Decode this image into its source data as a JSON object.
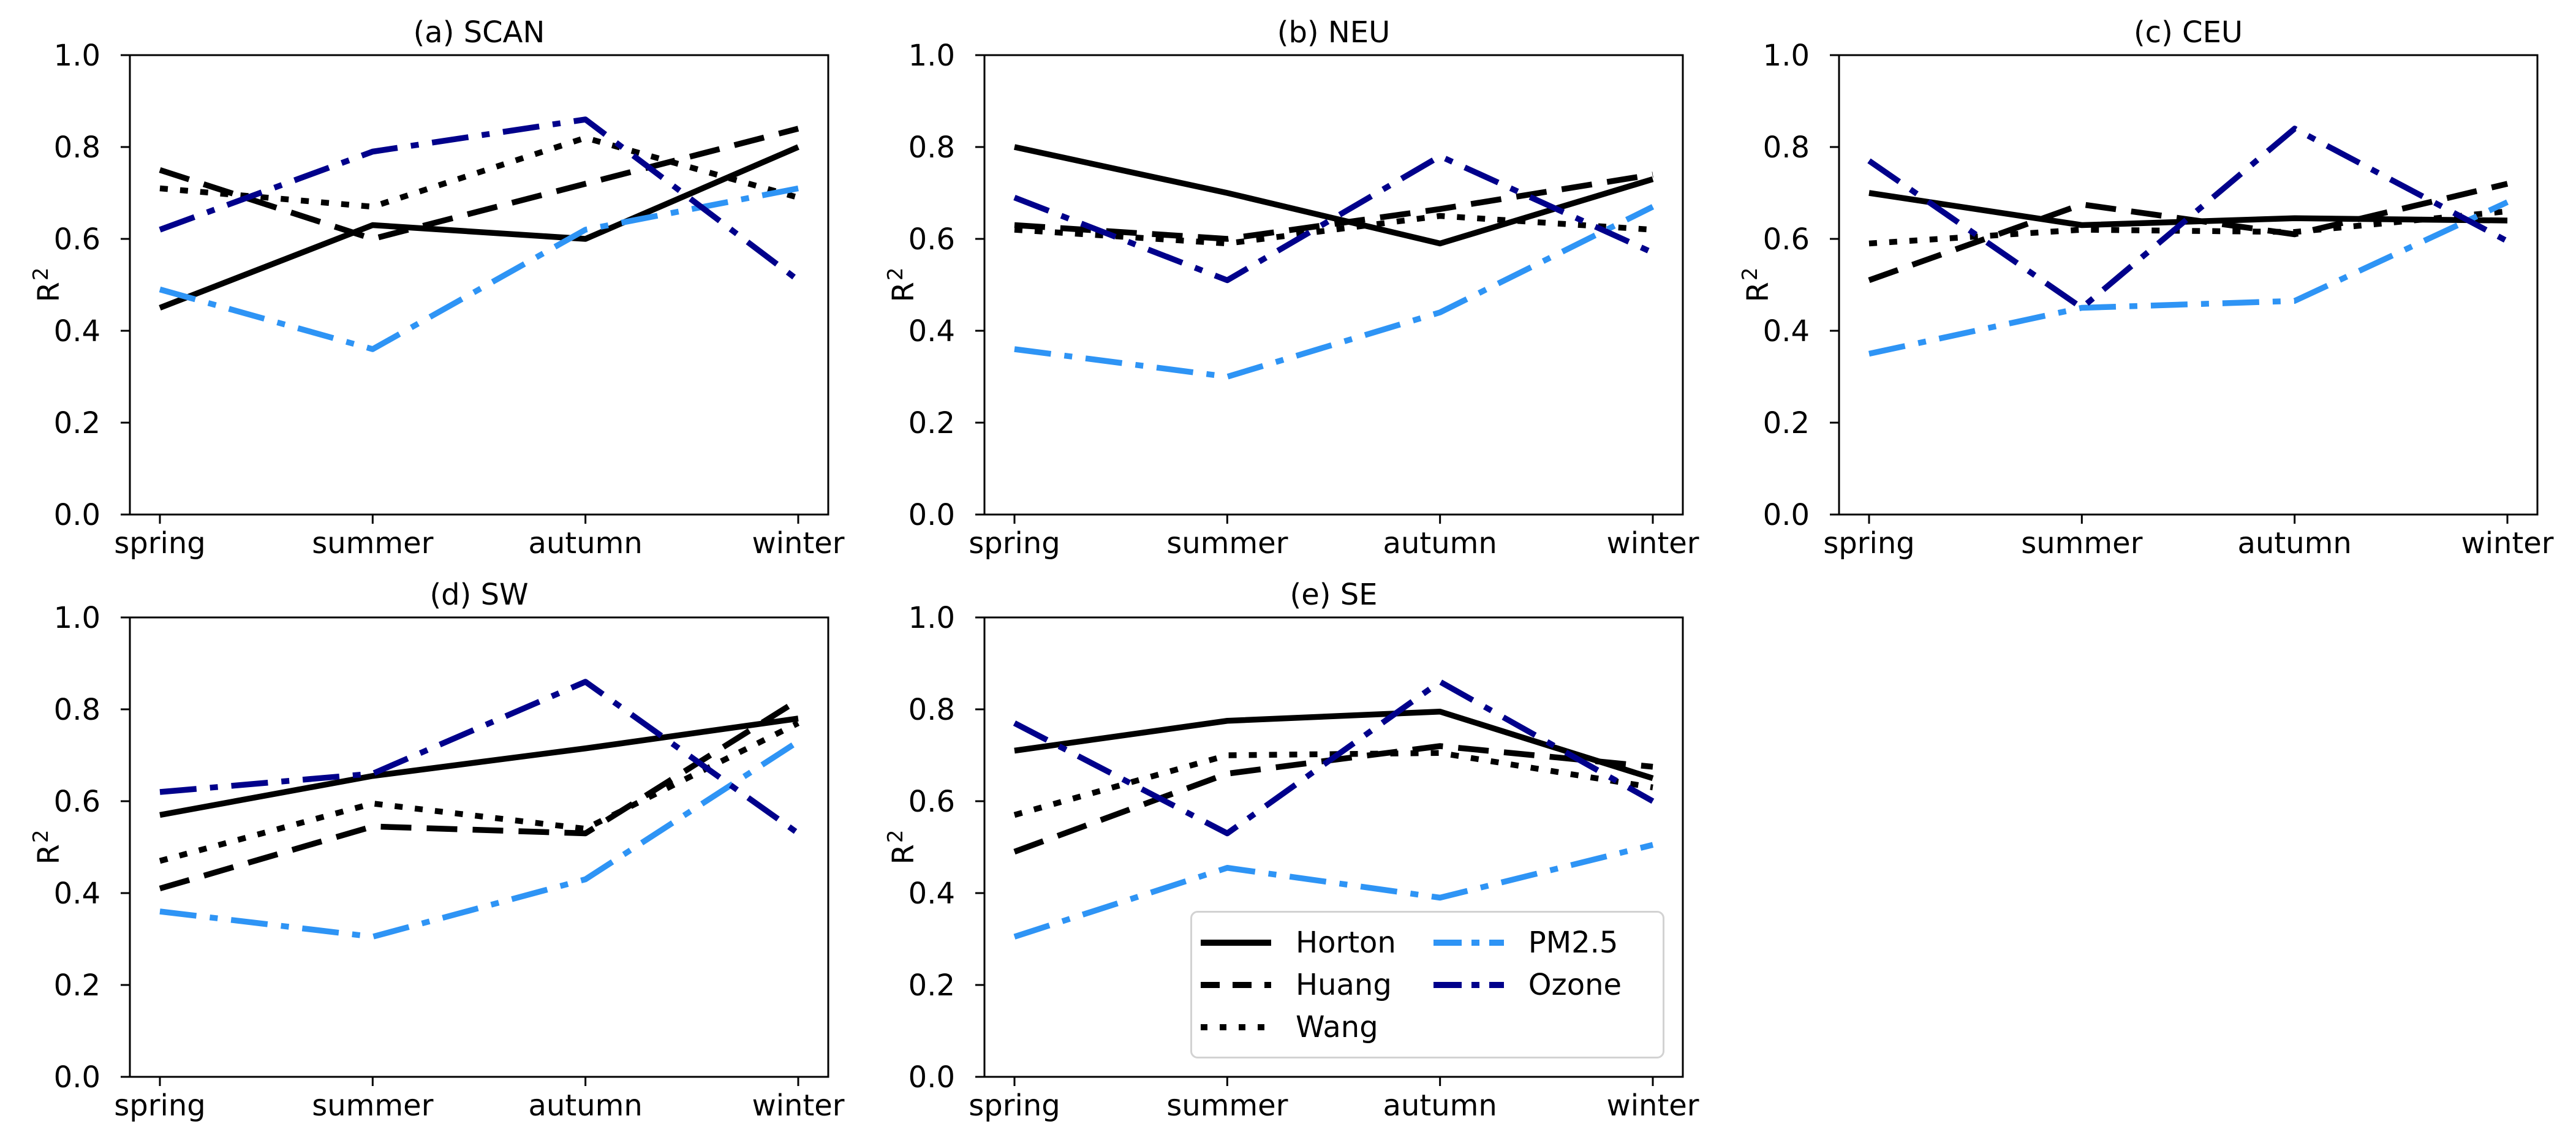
{
  "figure": {
    "background": "#ffffff",
    "n_rows": 2,
    "n_cols": 3,
    "empty_cells": [
      "row2-col3"
    ]
  },
  "ylabel_base": "R",
  "ylabel_exp": "2",
  "axis": {
    "yticks": [
      "0.0",
      "0.2",
      "0.4",
      "0.6",
      "0.8",
      "1.0"
    ],
    "ytick_values": [
      0.0,
      0.2,
      0.4,
      0.6,
      0.8,
      1.0
    ],
    "categories": [
      "spring",
      "summer",
      "autumn",
      "winter"
    ]
  },
  "series_styles": [
    {
      "name": "Horton",
      "color": "#000000",
      "linestyle": "solid"
    },
    {
      "name": "Huang",
      "color": "#000000",
      "linestyle": "dashed"
    },
    {
      "name": "Wang",
      "color": "#000000",
      "linestyle": "dotted"
    },
    {
      "name": "PM2.5",
      "color": "#2e94f5",
      "linestyle": "dashdot"
    },
    {
      "name": "Ozone",
      "color": "#00008b",
      "linestyle": "dashdot"
    }
  ],
  "legend": {
    "location": "lower right of panel (e)",
    "columns": 2,
    "items": [
      {
        "label": "Horton"
      },
      {
        "label": "Huang"
      },
      {
        "label": "Wang"
      },
      {
        "label": "PM2.5"
      },
      {
        "label": "Ozone"
      }
    ]
  },
  "chart_data": [
    {
      "type": "line",
      "panel": "a",
      "region": "SCAN",
      "title": "(a) SCAN",
      "xlabel": "",
      "ylabel": "R²",
      "ylim": [
        0.0,
        1.0
      ],
      "grid": false,
      "categories": [
        "spring",
        "summer",
        "autumn",
        "winter"
      ],
      "series": [
        {
          "name": "Horton",
          "values": [
            0.45,
            0.63,
            0.6,
            0.8
          ]
        },
        {
          "name": "Huang",
          "values": [
            0.75,
            0.6,
            0.72,
            0.84
          ]
        },
        {
          "name": "Wang",
          "values": [
            0.71,
            0.67,
            0.82,
            0.69
          ]
        },
        {
          "name": "PM2.5",
          "values": [
            0.49,
            0.36,
            0.62,
            0.71
          ]
        },
        {
          "name": "Ozone",
          "values": [
            0.62,
            0.79,
            0.86,
            0.51
          ]
        }
      ]
    },
    {
      "type": "line",
      "panel": "b",
      "region": "NEU",
      "title": "(b) NEU",
      "xlabel": "",
      "ylabel": "R²",
      "ylim": [
        0.0,
        1.0
      ],
      "grid": false,
      "categories": [
        "spring",
        "summer",
        "autumn",
        "winter"
      ],
      "series": [
        {
          "name": "Horton",
          "values": [
            0.8,
            0.7,
            0.59,
            0.73
          ]
        },
        {
          "name": "Huang",
          "values": [
            0.63,
            0.6,
            0.665,
            0.74
          ]
        },
        {
          "name": "Wang",
          "values": [
            0.62,
            0.59,
            0.65,
            0.62
          ]
        },
        {
          "name": "PM2.5",
          "values": [
            0.36,
            0.3,
            0.44,
            0.67
          ]
        },
        {
          "name": "Ozone",
          "values": [
            0.69,
            0.51,
            0.78,
            0.57
          ]
        }
      ]
    },
    {
      "type": "line",
      "panel": "c",
      "region": "CEU",
      "title": "(c) CEU",
      "xlabel": "",
      "ylabel": "R²",
      "ylim": [
        0.0,
        1.0
      ],
      "grid": false,
      "categories": [
        "spring",
        "summer",
        "autumn",
        "winter"
      ],
      "series": [
        {
          "name": "Horton",
          "values": [
            0.7,
            0.63,
            0.645,
            0.64
          ]
        },
        {
          "name": "Huang",
          "values": [
            0.51,
            0.675,
            0.61,
            0.72
          ]
        },
        {
          "name": "Wang",
          "values": [
            0.59,
            0.62,
            0.615,
            0.66
          ]
        },
        {
          "name": "PM2.5",
          "values": [
            0.35,
            0.45,
            0.465,
            0.68
          ]
        },
        {
          "name": "Ozone",
          "values": [
            0.77,
            0.45,
            0.84,
            0.595
          ]
        }
      ]
    },
    {
      "type": "line",
      "panel": "d",
      "region": "SW",
      "title": "(d) SW",
      "xlabel": "",
      "ylabel": "R²",
      "ylim": [
        0.0,
        1.0
      ],
      "grid": false,
      "categories": [
        "spring",
        "summer",
        "autumn",
        "winter"
      ],
      "series": [
        {
          "name": "Horton",
          "values": [
            0.57,
            0.655,
            0.715,
            0.78
          ]
        },
        {
          "name": "Huang",
          "values": [
            0.41,
            0.545,
            0.53,
            0.82
          ]
        },
        {
          "name": "Wang",
          "values": [
            0.47,
            0.595,
            0.54,
            0.77
          ]
        },
        {
          "name": "PM2.5",
          "values": [
            0.36,
            0.305,
            0.43,
            0.73
          ]
        },
        {
          "name": "Ozone",
          "values": [
            0.62,
            0.66,
            0.86,
            0.53
          ]
        }
      ]
    },
    {
      "type": "line",
      "panel": "e",
      "region": "SE",
      "title": "(e) SE",
      "xlabel": "",
      "ylabel": "R²",
      "ylim": [
        0.0,
        1.0
      ],
      "grid": false,
      "categories": [
        "spring",
        "summer",
        "autumn",
        "winter"
      ],
      "series": [
        {
          "name": "Horton",
          "values": [
            0.71,
            0.775,
            0.795,
            0.65
          ]
        },
        {
          "name": "Huang",
          "values": [
            0.49,
            0.66,
            0.72,
            0.675
          ]
        },
        {
          "name": "Wang",
          "values": [
            0.57,
            0.7,
            0.705,
            0.63
          ]
        },
        {
          "name": "PM2.5",
          "values": [
            0.305,
            0.455,
            0.39,
            0.505
          ]
        },
        {
          "name": "Ozone",
          "values": [
            0.77,
            0.53,
            0.86,
            0.6
          ]
        }
      ]
    }
  ]
}
